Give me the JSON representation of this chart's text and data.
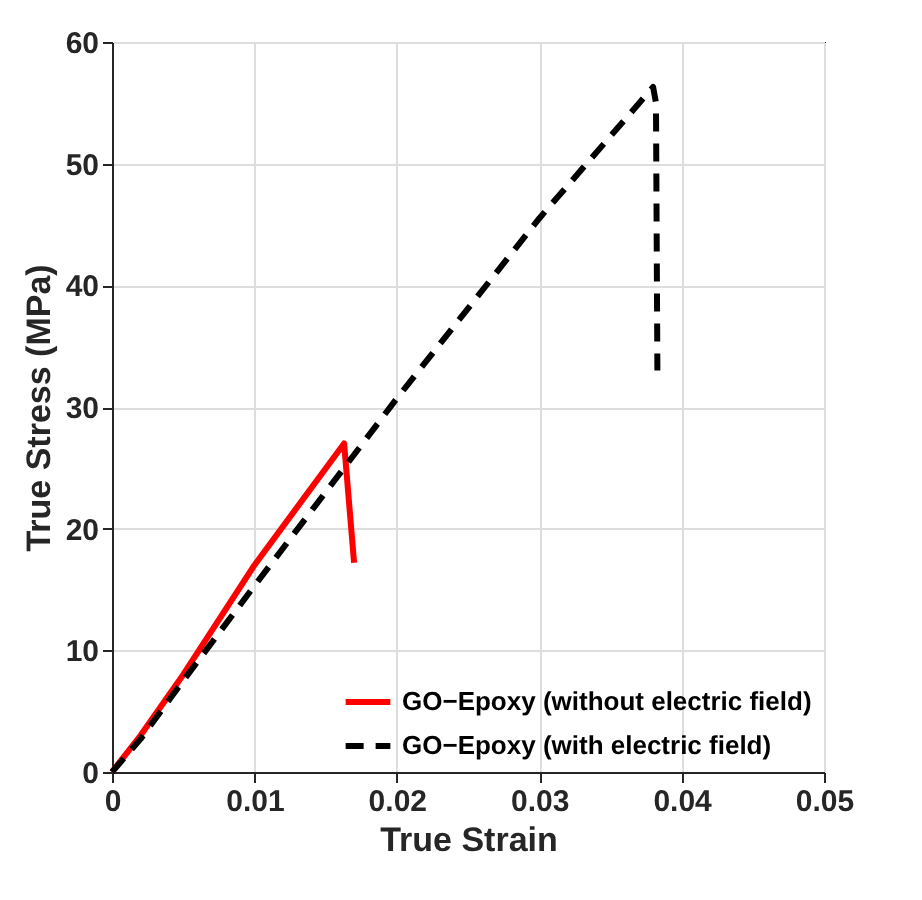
{
  "chart_data": {
    "type": "line",
    "xlabel": "True Strain",
    "ylabel": "True Stress (MPa)",
    "xlim": [
      0,
      0.05
    ],
    "xticks": [
      0,
      0.01,
      0.02,
      0.03,
      0.04,
      0.05
    ],
    "ylim": [
      0,
      60
    ],
    "yticks": [
      0,
      10,
      20,
      30,
      40,
      50,
      60
    ],
    "grid": true,
    "legend": "bottom right",
    "series": [
      {
        "name": "GO−Epoxy (without electric field)",
        "color": "#ff0000",
        "line_style": "solid",
        "x": [
          0,
          0.002,
          0.005,
          0.01,
          0.0163,
          0.017
        ],
        "values": [
          0,
          3,
          8,
          17,
          27,
          17.2
        ]
      },
      {
        "name": "GO−Epoxy (with electric field)",
        "color": "#000000",
        "line_style": "dashed",
        "x": [
          0,
          0.002,
          0.005,
          0.01,
          0.02,
          0.03,
          0.038,
          0.0382,
          0.0383
        ],
        "values": [
          0,
          2.7,
          7.5,
          15.3,
          30.7,
          45.5,
          56.3,
          55,
          33
        ]
      }
    ]
  }
}
